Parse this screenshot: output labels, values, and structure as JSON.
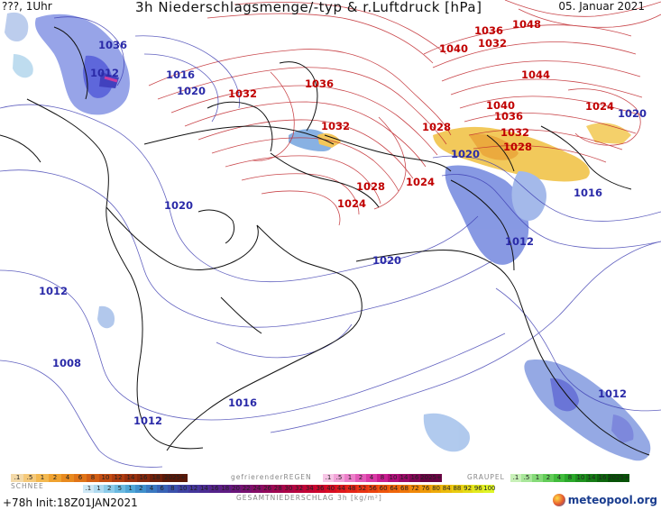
{
  "header": {
    "left": "???, 1Uhr",
    "title": "3h Niederschlagsmenge/-typ & r.Luftdruck [hPa]",
    "date": "05. Januar 2021"
  },
  "isobar_labels": [
    {
      "id": "p1036-nw",
      "text": "1036",
      "kind": "low"
    },
    {
      "id": "p1012-aegean",
      "text": "1012",
      "kind": "low"
    },
    {
      "id": "p1016-turkey",
      "text": "1016",
      "kind": "low"
    },
    {
      "id": "p1020-turkey",
      "text": "1020",
      "kind": "low"
    },
    {
      "id": "p1032-caucasus",
      "text": "1032",
      "kind": "high"
    },
    {
      "id": "p1036-caspian",
      "text": "1036",
      "kind": "high"
    },
    {
      "id": "p1040-n",
      "text": "1040",
      "kind": "high"
    },
    {
      "id": "p1036-n",
      "text": "1036",
      "kind": "high"
    },
    {
      "id": "p1032-n",
      "text": "1032",
      "kind": "high"
    },
    {
      "id": "p1048",
      "text": "1048",
      "kind": "high"
    },
    {
      "id": "p1044",
      "text": "1044",
      "kind": "high"
    },
    {
      "id": "p1040-c",
      "text": "1040",
      "kind": "high"
    },
    {
      "id": "p1036-c",
      "text": "1036",
      "kind": "high"
    },
    {
      "id": "p1024-e",
      "text": "1024",
      "kind": "high"
    },
    {
      "id": "p1020-e",
      "text": "1020",
      "kind": "low"
    },
    {
      "id": "p1032-aral",
      "text": "1032",
      "kind": "high"
    },
    {
      "id": "p1028-kaz",
      "text": "1028",
      "kind": "high"
    },
    {
      "id": "p1032-tarim",
      "text": "1032",
      "kind": "high"
    },
    {
      "id": "p1028-tarim",
      "text": "1028",
      "kind": "high"
    },
    {
      "id": "p1020-himalaya",
      "text": "1020",
      "kind": "low"
    },
    {
      "id": "p1016-ind",
      "text": "1016",
      "kind": "low"
    },
    {
      "id": "p1012-ind",
      "text": "1012",
      "kind": "low"
    },
    {
      "id": "p1028-iran",
      "text": "1028",
      "kind": "high"
    },
    {
      "id": "p1024-iran",
      "text": "1024",
      "kind": "high"
    },
    {
      "id": "p1024-afg",
      "text": "1024",
      "kind": "high"
    },
    {
      "id": "p1020-arab",
      "text": "1020",
      "kind": "low"
    },
    {
      "id": "p1020-gulf",
      "text": "1020",
      "kind": "low"
    },
    {
      "id": "p1012-red",
      "text": "1012",
      "kind": "low"
    },
    {
      "id": "p1008",
      "text": "1008",
      "kind": "low"
    },
    {
      "id": "p1016-arabsea",
      "text": "1016",
      "kind": "low"
    },
    {
      "id": "p1012-horn",
      "text": "1012",
      "kind": "low"
    },
    {
      "id": "p1012-india-s",
      "text": "1012",
      "kind": "low"
    }
  ],
  "legend": {
    "snow_label": "SCHNEE",
    "freezing_rain_label": "gefrierenderREGEN",
    "graupel_label": "GRAUPEL",
    "total_label": "GESAMTNIEDERSCHLAG 3h [kg/m²]",
    "snow_ticks": [
      ".1",
      ".5",
      "1",
      "2",
      "4",
      "6",
      "8",
      "10",
      "12",
      "14",
      "16",
      "18",
      "2025+"
    ],
    "freezing_ticks": [
      ".1",
      ".5",
      "1",
      "2",
      "4",
      "8",
      "10",
      "14",
      "16",
      "2025+"
    ],
    "graupel_ticks": [
      ".1",
      ".5",
      "1",
      "2",
      "4",
      "8",
      "10",
      "14",
      "16",
      "2025+"
    ],
    "rain_ticks": [
      ".1",
      "1",
      "2",
      "5",
      "1",
      "2",
      "4",
      "6",
      "8",
      "10",
      "12",
      "14",
      "16",
      "18",
      "20",
      "22",
      "24",
      "26",
      "28",
      "30",
      "32",
      "34",
      "36",
      "40",
      "44",
      "48",
      "52",
      "56",
      "60",
      "64",
      "68",
      "72",
      "76",
      "80",
      "84",
      "88",
      "92",
      "96",
      "100"
    ],
    "colors": {
      "snow": [
        "#f3d9a8",
        "#f5c97a",
        "#f3b84f",
        "#efa230",
        "#e88a1f",
        "#e07418",
        "#d25e14",
        "#c34d12",
        "#b03d10",
        "#9a300e",
        "#85270c",
        "#6f1f0a",
        "#5a1808"
      ],
      "freezing": [
        "#f7c6e6",
        "#f2a3d8",
        "#ec7fc9",
        "#e35ab8",
        "#d93aa6",
        "#c91e91",
        "#b30f7c",
        "#9b0a68",
        "#830655",
        "#6b0343"
      ],
      "graupel": [
        "#c8f0b8",
        "#a8e69a",
        "#85da78",
        "#62cc58",
        "#41bc3c",
        "#2aa82a",
        "#1e921e",
        "#157c15",
        "#0d660d",
        "#075207"
      ],
      "rain": [
        "#cfe8f5",
        "#b0daf0",
        "#8ccbe9",
        "#6ab9e0",
        "#4fa6d6",
        "#3f8fcb",
        "#3a78c0",
        "#3863b5",
        "#3a51ab",
        "#3e42a3",
        "#44369b",
        "#4b2c93",
        "#54238b",
        "#5e1c83",
        "#6a167a",
        "#771170",
        "#840d66",
        "#920a5b",
        "#a00751",
        "#ad0547",
        "#b9043d",
        "#c40434",
        "#ce062b",
        "#d70d23",
        "#de181d",
        "#e42518",
        "#e93414",
        "#ec4410",
        "#ee550d",
        "#ef660b",
        "#f0770a",
        "#f08809",
        "#ef9a09",
        "#eeab0a",
        "#ecbc0c",
        "#e9cc10",
        "#e6dc16",
        "#e2ea1e",
        "#dff528"
      ]
    }
  },
  "footer": {
    "run": "+78h Init:18Z01JAN2021",
    "brand": "meteopool.org"
  }
}
